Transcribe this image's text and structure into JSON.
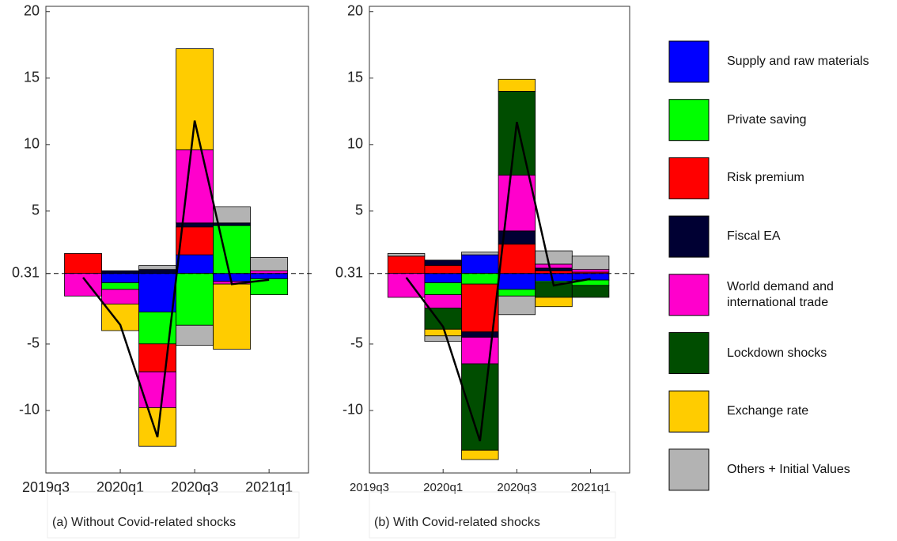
{
  "legend": [
    {
      "name": "Supply and raw materials",
      "color": "#0000ff"
    },
    {
      "name": "Private saving",
      "color": "#00ff00"
    },
    {
      "name": "Risk premium",
      "color": "#ff0000"
    },
    {
      "name": "Fiscal EA",
      "color": "#000033"
    },
    {
      "name": "World demand and international trade",
      "color": "#ff00cc"
    },
    {
      "name": "Lockdown shocks",
      "color": "#004d00"
    },
    {
      "name": "Exchange rate",
      "color": "#ffcc00"
    },
    {
      "name": "Others + Initial Values",
      "color": "#b3b3b3"
    }
  ],
  "chart_data": [
    {
      "type": "bar",
      "stacked": true,
      "title": "(a) Without Covid-related shocks",
      "categories": [
        "2019q3",
        null,
        "2020q1",
        null,
        "2020q3",
        null,
        "2021q1"
      ],
      "ylim": [
        -14.7,
        20.4
      ],
      "yticks": [
        -10,
        -5,
        0.31,
        5,
        10,
        15,
        20
      ],
      "baseline": 0.31,
      "series": [
        {
          "values": [
            null,
            0,
            -0.7,
            -2.9,
            1.4,
            -0.6,
            -0.4
          ]
        },
        {
          "values": [
            null,
            0,
            -0.5,
            -2.4,
            -3.9,
            3.6,
            -1.2
          ]
        },
        {
          "values": [
            null,
            1.5,
            0,
            -2.1,
            2.1,
            0,
            0
          ]
        },
        {
          "values": [
            null,
            0,
            0.2,
            0.3,
            0.3,
            0.2,
            0
          ]
        },
        {
          "values": [
            null,
            -1.7,
            -1.1,
            -2.7,
            5.5,
            -0.2,
            0.2
          ]
        },
        {
          "values": [
            null,
            0,
            0,
            0,
            0,
            0,
            0
          ]
        },
        {
          "values": [
            null,
            0,
            -2.0,
            -2.9,
            7.6,
            -4.9,
            0
          ]
        },
        {
          "values": [
            null,
            0,
            0,
            0.3,
            -1.5,
            1.2,
            1.0
          ]
        }
      ],
      "line": {
        "color": "#000000",
        "values": [
          null,
          0.0,
          -3.56,
          -12.0,
          11.8,
          -0.5,
          -0.17
        ]
      }
    },
    {
      "type": "bar",
      "stacked": true,
      "title": "(b) With Covid-related shocks",
      "categories": [
        "2019q3",
        null,
        "2020q1",
        null,
        "2020q3",
        null,
        "2021q1"
      ],
      "ylim": [
        -14.7,
        20.4
      ],
      "yticks": [
        -10,
        -5,
        0.31,
        5,
        10,
        15,
        20
      ],
      "baseline": 0.31,
      "series": [
        {
          "values": [
            null,
            0,
            -0.7,
            1.4,
            -1.2,
            -0.6,
            -0.5
          ]
        },
        {
          "values": [
            null,
            0,
            -0.9,
            -0.8,
            -0.5,
            -0.1,
            -0.4
          ]
        },
        {
          "values": [
            null,
            1.3,
            0.6,
            -3.6,
            2.2,
            0.2,
            0.1
          ]
        },
        {
          "values": [
            null,
            0,
            0.4,
            -0.4,
            1.0,
            0.2,
            0
          ]
        },
        {
          "values": [
            null,
            -1.8,
            -1.0,
            -2.0,
            4.2,
            0.3,
            0.2
          ]
        },
        {
          "values": [
            null,
            0,
            -1.6,
            -6.5,
            6.3,
            -1.1,
            -0.9
          ]
        },
        {
          "values": [
            null,
            0,
            -0.5,
            -0.7,
            0.9,
            -0.7,
            0
          ]
        },
        {
          "values": [
            null,
            0.2,
            -0.4,
            0.2,
            -1.4,
            1.0,
            1.0
          ]
        }
      ],
      "line": {
        "color": "#000000",
        "values": [
          null,
          0.0,
          -3.7,
          -12.3,
          11.7,
          -0.6,
          -0.1
        ]
      }
    }
  ]
}
